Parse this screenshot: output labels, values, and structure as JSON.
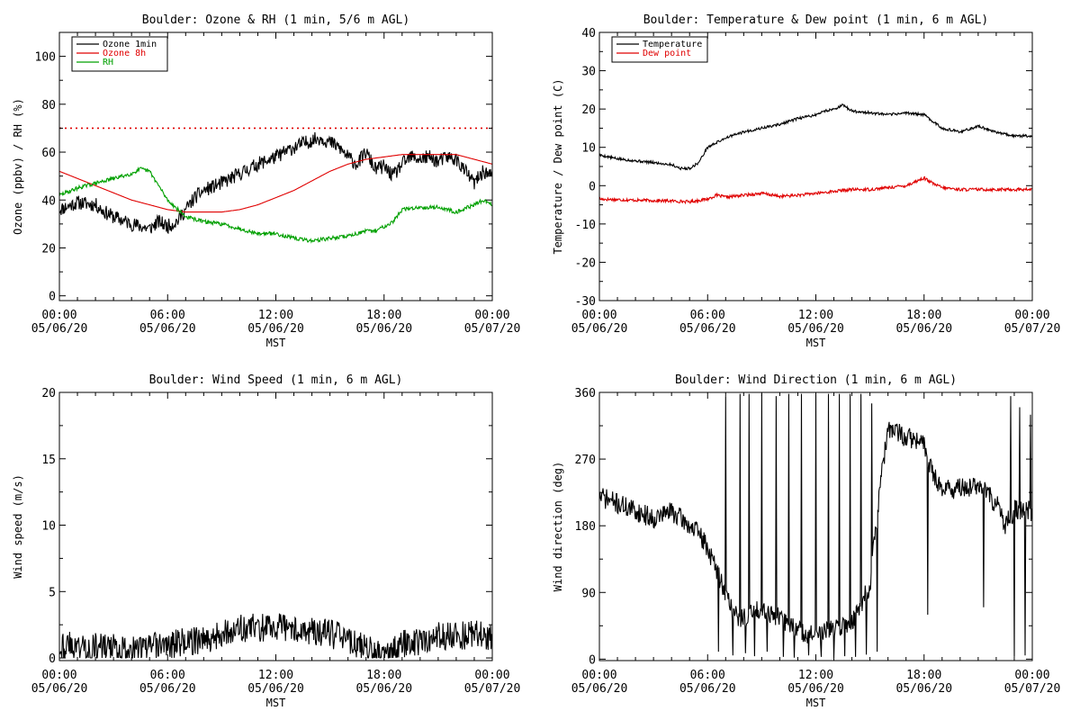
{
  "chart_data": [
    {
      "type": "line",
      "title": "Boulder: Ozone & RH (1 min, 5/6 m AGL)",
      "xlabel": "MST",
      "ylabel": "Ozone (ppbv) / RH (%)",
      "xticks": [
        {
          "time": "00:00",
          "date": "05/06/20"
        },
        {
          "time": "06:00",
          "date": "05/06/20"
        },
        {
          "time": "12:00",
          "date": "05/06/20"
        },
        {
          "time": "18:00",
          "date": "05/06/20"
        },
        {
          "time": "00:00",
          "date": "05/07/20"
        }
      ],
      "xlim_hours": [
        0,
        24
      ],
      "ylim": [
        -2,
        110
      ],
      "yticks": [
        0,
        20,
        40,
        60,
        80,
        100
      ],
      "legend_position": "top-left",
      "reference_line": {
        "y": 70,
        "color": "#e00000",
        "style": "dotted"
      },
      "series": [
        {
          "name": "Ozone 1min",
          "color": "#000000",
          "noise": 3.0,
          "seed": 11,
          "x_hours": [
            0,
            1,
            2,
            2.5,
            3,
            4,
            5,
            5.5,
            6,
            6.5,
            7,
            7.5,
            8,
            9,
            10,
            11,
            12,
            13,
            14,
            14.5,
            15,
            15.5,
            16,
            16.5,
            17,
            17.5,
            18,
            18.5,
            19,
            19.5,
            20,
            20.5,
            21,
            21.5,
            22,
            22.5,
            23,
            23.5,
            24
          ],
          "values": [
            36,
            39,
            38,
            35,
            33,
            30,
            28,
            31,
            29,
            31,
            36,
            41,
            44,
            47,
            51,
            55,
            58,
            62,
            65,
            66,
            64,
            62,
            58,
            55,
            60,
            53,
            54,
            50,
            55,
            58,
            57,
            58,
            56,
            58,
            57,
            52,
            47,
            52,
            50
          ]
        },
        {
          "name": "Ozone 8h",
          "color": "#e00000",
          "noise": 0,
          "seed": 0,
          "x_hours": [
            0,
            1,
            2,
            3,
            4,
            5,
            6,
            7,
            8,
            9,
            10,
            11,
            12,
            13,
            14,
            15,
            16,
            17,
            18,
            19,
            20,
            21,
            22,
            23,
            24
          ],
          "values": [
            52,
            49,
            46,
            43,
            40,
            38,
            36,
            35,
            35,
            35,
            36,
            38,
            41,
            44,
            48,
            52,
            55,
            57,
            58,
            59,
            59,
            59,
            59,
            57,
            55
          ]
        },
        {
          "name": "RH",
          "color": "#00a000",
          "noise": 0.8,
          "seed": 29,
          "x_hours": [
            0,
            1,
            2,
            3,
            4,
            4.5,
            5,
            5.5,
            6,
            7,
            8,
            9,
            10,
            11,
            12,
            13,
            14,
            15,
            16,
            17,
            17.5,
            18,
            18.5,
            19,
            20,
            21,
            22,
            23,
            23.5,
            24
          ],
          "values": [
            42,
            45,
            47,
            49,
            51,
            53,
            52,
            46,
            40,
            33,
            31,
            30,
            28,
            26,
            26,
            24,
            23,
            24,
            25,
            27,
            27,
            29,
            31,
            36,
            37,
            37,
            35,
            38,
            40,
            38
          ]
        }
      ]
    },
    {
      "type": "line",
      "title": "Boulder: Temperature & Dew point (1 min, 6 m AGL)",
      "xlabel": "MST",
      "ylabel": "Temperature / Dew point (C)",
      "xticks": [
        {
          "time": "00:00",
          "date": "05/06/20"
        },
        {
          "time": "06:00",
          "date": "05/06/20"
        },
        {
          "time": "12:00",
          "date": "05/06/20"
        },
        {
          "time": "18:00",
          "date": "05/06/20"
        },
        {
          "time": "00:00",
          "date": "05/07/20"
        }
      ],
      "xlim_hours": [
        0,
        24
      ],
      "ylim": [
        -30,
        40
      ],
      "yticks": [
        -30,
        -20,
        -10,
        0,
        10,
        20,
        30,
        40
      ],
      "legend_position": "top-left",
      "series": [
        {
          "name": "Temperature",
          "color": "#000000",
          "noise": 0.35,
          "seed": 5,
          "x_hours": [
            0,
            1,
            2,
            3,
            4,
            4.5,
            5,
            5.5,
            6,
            7,
            8,
            9,
            10,
            11,
            12,
            12.5,
            13,
            13.5,
            14,
            15,
            16,
            17,
            18,
            19,
            20,
            21,
            22,
            23,
            24
          ],
          "values": [
            8,
            7,
            6.5,
            6,
            5.5,
            4.5,
            4.5,
            6,
            10,
            12.5,
            14,
            15,
            16,
            17.5,
            18.5,
            19.5,
            20,
            21,
            19.5,
            19,
            18.5,
            19,
            18.5,
            15,
            14,
            15.5,
            14,
            13,
            13
          ]
        },
        {
          "name": "Dew point",
          "color": "#e00000",
          "noise": 0.4,
          "seed": 17,
          "x_hours": [
            0,
            2,
            4,
            5,
            6,
            6.5,
            7,
            8,
            9,
            10,
            11,
            12,
            13,
            14,
            15,
            16,
            17,
            17.5,
            18,
            18.5,
            19,
            20,
            21,
            22,
            23,
            24
          ],
          "values": [
            -3.5,
            -3.8,
            -4,
            -4.2,
            -3.5,
            -2.5,
            -3,
            -2.5,
            -2,
            -2.8,
            -2.5,
            -2,
            -1.5,
            -1,
            -1,
            -0.5,
            0,
            1,
            2,
            0.5,
            -0.5,
            -1,
            -1,
            -1,
            -1,
            -1
          ]
        }
      ]
    },
    {
      "type": "line",
      "title": "Boulder: Wind Speed (1 min, 6 m AGL)",
      "xlabel": "MST",
      "ylabel": "Wind speed (m/s)",
      "xticks": [
        {
          "time": "00:00",
          "date": "05/06/20"
        },
        {
          "time": "06:00",
          "date": "05/06/20"
        },
        {
          "time": "12:00",
          "date": "05/06/20"
        },
        {
          "time": "18:00",
          "date": "05/06/20"
        },
        {
          "time": "00:00",
          "date": "05/07/20"
        }
      ],
      "xlim_hours": [
        0,
        24
      ],
      "ylim": [
        -0.2,
        20
      ],
      "yticks": [
        0,
        5,
        10,
        15,
        20
      ],
      "series": [
        {
          "name": "",
          "color": "#000000",
          "noise": 1.1,
          "seed": 43,
          "clip_min": 0,
          "x_hours": [
            0,
            2,
            4,
            6,
            7,
            8,
            9,
            10,
            11,
            12,
            13,
            14,
            15,
            16,
            17,
            18,
            18.5,
            19,
            20,
            21,
            22,
            23,
            24
          ],
          "values": [
            1,
            0.8,
            0.6,
            1,
            1.2,
            1.4,
            1.8,
            2.2,
            2.3,
            2.3,
            2.2,
            2,
            1.8,
            1.4,
            0.6,
            0.2,
            0.5,
            1,
            1.3,
            1.6,
            1.6,
            1.8,
            1.4
          ]
        }
      ]
    },
    {
      "type": "line",
      "title": "Boulder: Wind Direction (1 min, 6 m AGL)",
      "xlabel": "MST",
      "ylabel": "Wind direction (deg)",
      "xticks": [
        {
          "time": "00:00",
          "date": "05/06/20"
        },
        {
          "time": "06:00",
          "date": "05/06/20"
        },
        {
          "time": "12:00",
          "date": "05/06/20"
        },
        {
          "time": "18:00",
          "date": "05/06/20"
        },
        {
          "time": "00:00",
          "date": "05/07/20"
        }
      ],
      "xlim_hours": [
        0,
        24
      ],
      "ylim": [
        -2,
        360
      ],
      "yticks": [
        0,
        90,
        180,
        270,
        360
      ],
      "series": [
        {
          "name": "",
          "color": "#000000",
          "noise": 14,
          "seed": 71,
          "clip_min": 0,
          "clip_max": 360,
          "x_hours": [
            0,
            1,
            2,
            3,
            4,
            5,
            5.5,
            6,
            6.5,
            7,
            7.5,
            8,
            9,
            10,
            11,
            12,
            13,
            14,
            15,
            15.5,
            16,
            17,
            18,
            18.5,
            19,
            20,
            21,
            22,
            22.5,
            23,
            24
          ],
          "values": [
            220,
            210,
            200,
            190,
            200,
            180,
            170,
            150,
            120,
            90,
            60,
            55,
            70,
            55,
            40,
            30,
            40,
            50,
            100,
            220,
            310,
            300,
            290,
            250,
            230,
            230,
            235,
            210,
            180,
            200,
            200
          ],
          "spikes": [
            {
              "x": 6.6,
              "y": 10
            },
            {
              "x": 7.0,
              "y": 355
            },
            {
              "x": 7.4,
              "y": 5
            },
            {
              "x": 7.8,
              "y": 358
            },
            {
              "x": 8.1,
              "y": 8
            },
            {
              "x": 8.3,
              "y": 358
            },
            {
              "x": 8.6,
              "y": 4
            },
            {
              "x": 9.0,
              "y": 358
            },
            {
              "x": 9.3,
              "y": 10
            },
            {
              "x": 9.8,
              "y": 355
            },
            {
              "x": 10.2,
              "y": 3
            },
            {
              "x": 10.5,
              "y": 358
            },
            {
              "x": 10.8,
              "y": 2
            },
            {
              "x": 11.2,
              "y": 358
            },
            {
              "x": 11.6,
              "y": 5
            },
            {
              "x": 12.0,
              "y": 358
            },
            {
              "x": 12.3,
              "y": 3
            },
            {
              "x": 12.7,
              "y": 358
            },
            {
              "x": 13.0,
              "y": 2
            },
            {
              "x": 13.3,
              "y": 358
            },
            {
              "x": 13.6,
              "y": 4
            },
            {
              "x": 13.9,
              "y": 358
            },
            {
              "x": 14.2,
              "y": 3
            },
            {
              "x": 14.5,
              "y": 358
            },
            {
              "x": 14.8,
              "y": 6
            },
            {
              "x": 15.1,
              "y": 345
            },
            {
              "x": 15.4,
              "y": 10
            },
            {
              "x": 18.2,
              "y": 60
            },
            {
              "x": 21.3,
              "y": 70
            },
            {
              "x": 22.8,
              "y": 355
            },
            {
              "x": 23.0,
              "y": 3
            },
            {
              "x": 23.3,
              "y": 340
            },
            {
              "x": 23.6,
              "y": 5
            },
            {
              "x": 23.9,
              "y": 330
            }
          ]
        }
      ]
    }
  ]
}
